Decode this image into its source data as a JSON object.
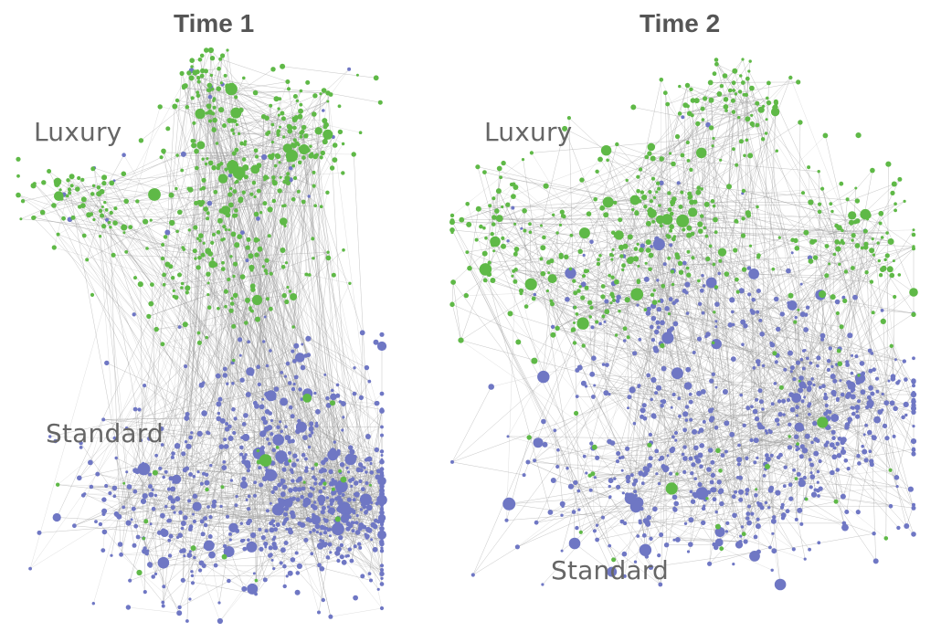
{
  "panels": [
    {
      "title": "Time 1",
      "labels": {
        "luxury": "Luxury",
        "standard": "Standard"
      }
    },
    {
      "title": "Time 2",
      "labels": {
        "luxury": "Luxury",
        "standard": "Standard"
      }
    }
  ],
  "colors": {
    "luxury_node": "#5fb947",
    "standard_node": "#6f77c4",
    "edge": "#9a9a9a",
    "text": "#555555"
  }
}
